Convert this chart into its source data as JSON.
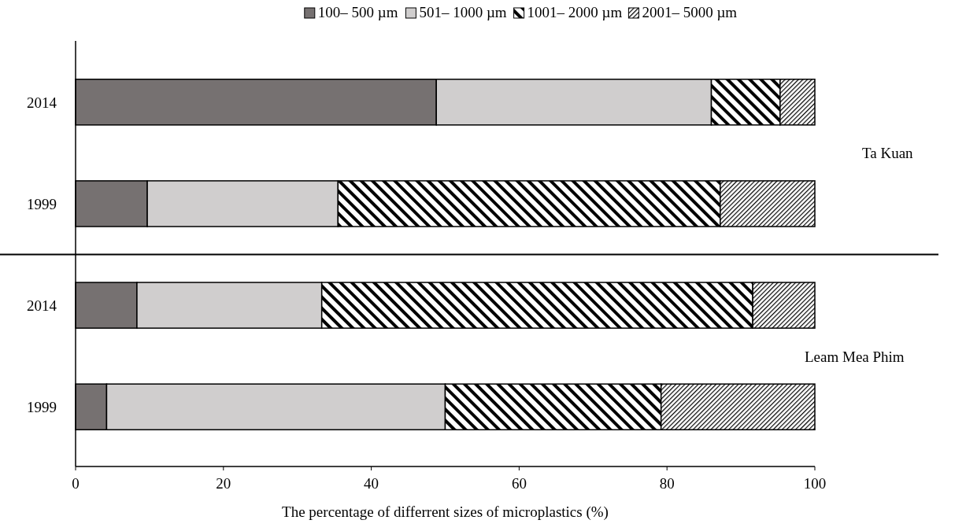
{
  "chart_data": {
    "type": "bar",
    "orientation": "horizontal",
    "stacked": true,
    "categories": [
      "2014",
      "1999",
      "2014",
      "1999"
    ],
    "series": [
      {
        "name": "100– 500 µm",
        "color": "#767171",
        "values": [
          48.8,
          9.7,
          8.3,
          4.2
        ]
      },
      {
        "name": "501– 1000 µm",
        "color": "#d0cece",
        "values": [
          37.2,
          25.8,
          25.0,
          45.8
        ]
      },
      {
        "name": "1001– 2000 µm",
        "color": "#000000",
        "values": [
          9.3,
          51.7,
          58.3,
          29.2
        ]
      },
      {
        "name": "2001– 5000 µm",
        "color": "#000000",
        "values": [
          4.7,
          12.8,
          8.4,
          20.8
        ]
      }
    ],
    "xlim": [
      0,
      100
    ],
    "xticks": [
      0,
      20,
      40,
      60,
      80,
      100
    ],
    "xlabel": "The percentage of differrent sizes of microplastics (%)",
    "annotations": [
      "Ta Kuan",
      "Leam Mea Phim"
    ],
    "legend": "top",
    "grid": false
  }
}
